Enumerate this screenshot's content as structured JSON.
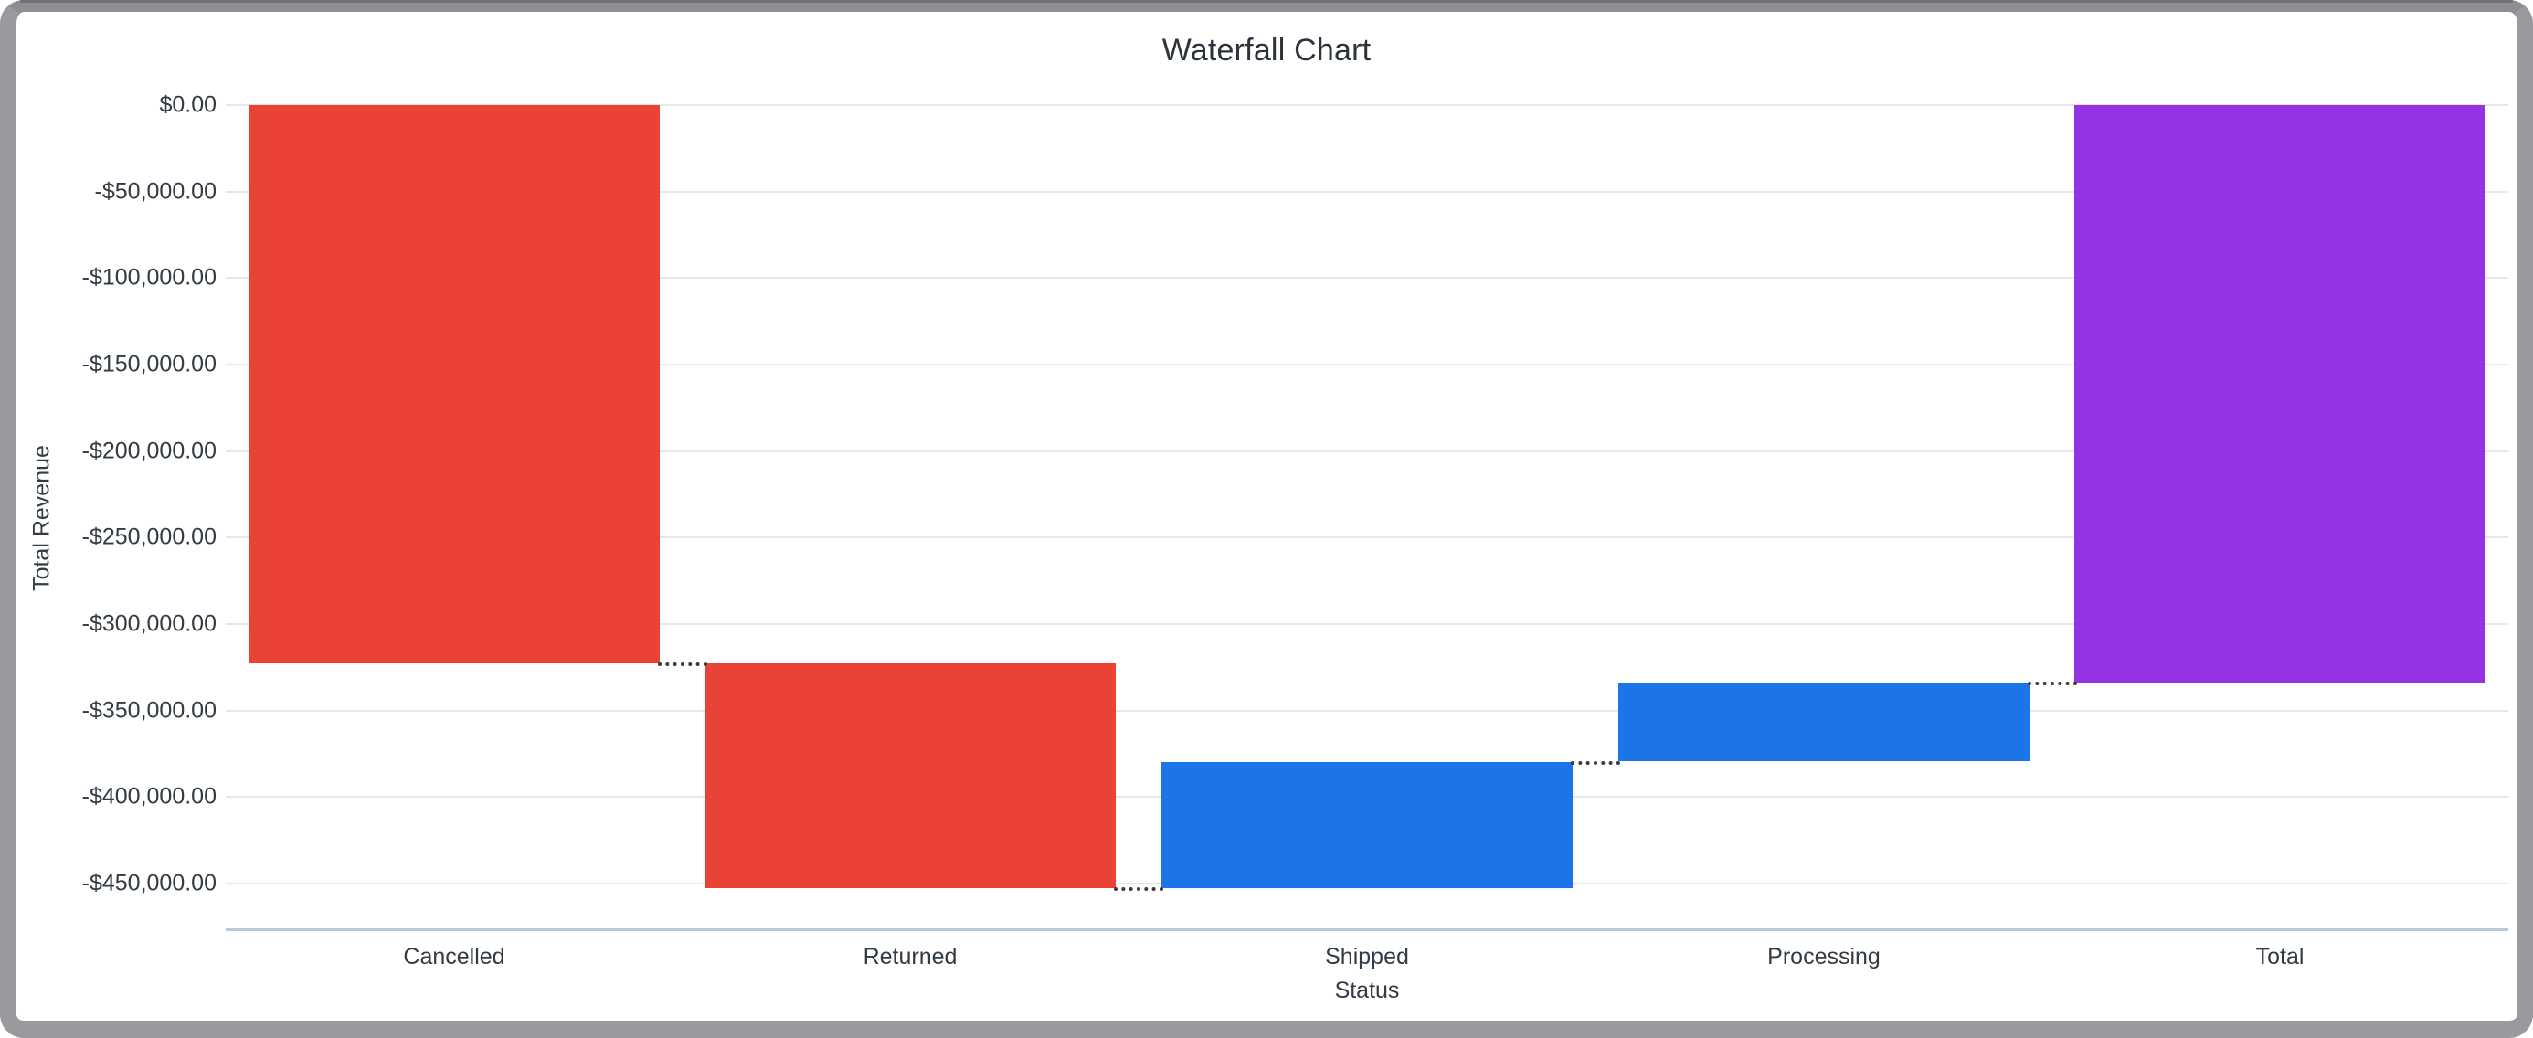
{
  "window": {
    "frame_color": "#9a9a9e",
    "card_background": "#ffffff"
  },
  "chart": {
    "title": "Waterfall Chart",
    "x_axis_title": "Status",
    "y_axis_title": "Total Revenue",
    "y_tick_labels": [
      "$0.00",
      "-$50,000.00",
      "-$100,000.00",
      "-$150,000.00",
      "-$200,000.00",
      "-$250,000.00",
      "-$300,000.00",
      "-$350,000.00",
      "-$400,000.00",
      "-$450,000.00"
    ],
    "x_tick_labels": [
      "Cancelled",
      "Returned",
      "Shipped",
      "Processing",
      "Total"
    ],
    "colors": {
      "decrease": "#EA4335",
      "increase": "#1B74E8",
      "total": "#9333E3",
      "gridline": "#E7E7E7",
      "axis_line": "#BAC6DA",
      "connector": "#3C3C3C",
      "label_text": "#333B45",
      "title_text": "#2D333C"
    }
  },
  "chart_data": {
    "type": "bar",
    "subtype": "waterfall",
    "title": "Waterfall Chart",
    "xlabel": "Status",
    "ylabel": "Total Revenue",
    "categories": [
      "Cancelled",
      "Returned",
      "Shipped",
      "Processing",
      "Total"
    ],
    "series": [
      {
        "name": "Cancelled",
        "start": 0,
        "end": -322500,
        "delta": -322500,
        "role": "decrease"
      },
      {
        "name": "Returned",
        "start": -322500,
        "end": -452500,
        "delta": -130000,
        "role": "decrease"
      },
      {
        "name": "Shipped",
        "start": -452500,
        "end": -379500,
        "delta": 73000,
        "role": "increase"
      },
      {
        "name": "Processing",
        "start": -379500,
        "end": -334000,
        "delta": 45500,
        "role": "increase"
      },
      {
        "name": "Total",
        "start": 0,
        "end": -334000,
        "delta": -334000,
        "role": "total"
      }
    ],
    "ylim": [
      -476000,
      0
    ],
    "y_tick_step": 50000,
    "grid": true,
    "legend": false,
    "connectors": "dotted"
  }
}
